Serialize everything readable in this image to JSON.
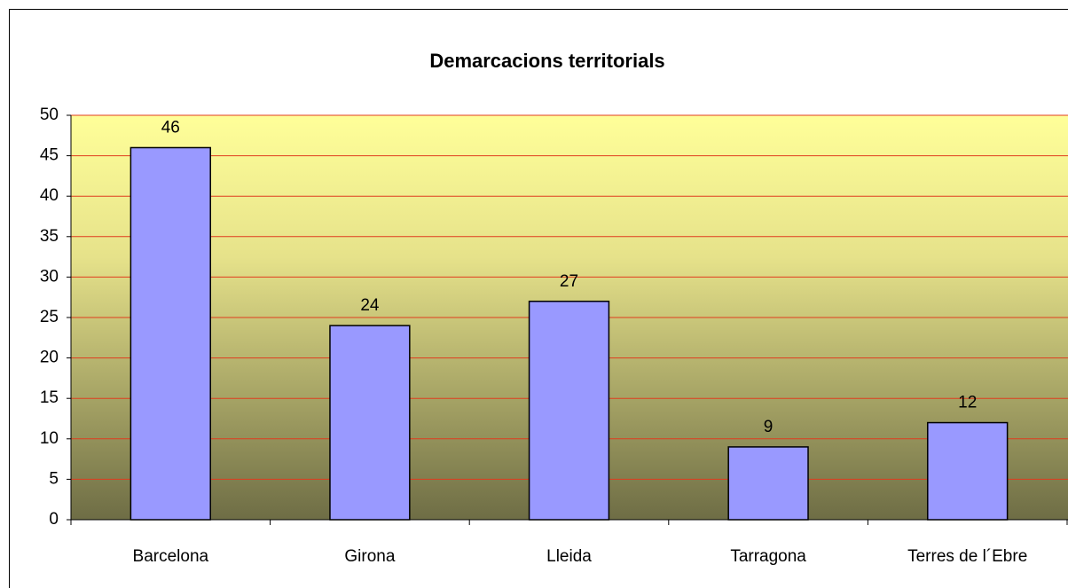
{
  "chart_data": {
    "type": "bar",
    "title": "Demarcacions territorials",
    "categories": [
      "Barcelona",
      "Girona",
      "Lleida",
      "Tarragona",
      "Terres de l´Ebre"
    ],
    "values": [
      46,
      24,
      27,
      9,
      12
    ],
    "color": "#9999ff",
    "ylim": [
      0,
      50
    ],
    "yticks": [
      0,
      5,
      10,
      15,
      20,
      25,
      30,
      35,
      40,
      45,
      50
    ],
    "grid": true
  }
}
